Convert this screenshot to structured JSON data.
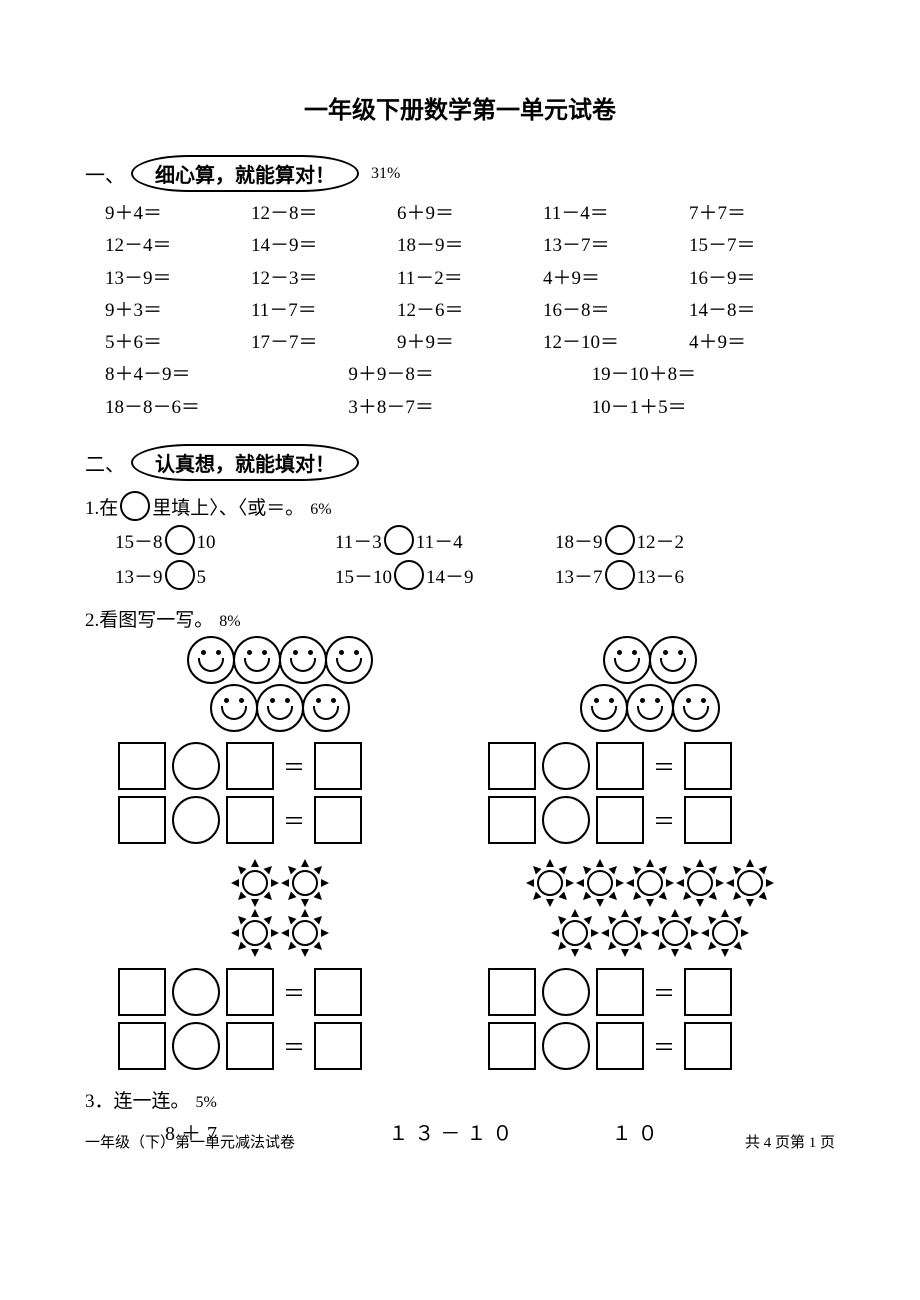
{
  "title": "一年级下册数学第一单元试卷",
  "section1": {
    "num": "一、",
    "bubble": "细心算，就能算对！",
    "pct": "31%",
    "rows": [
      [
        "9＋4＝",
        "12－8＝",
        "6＋9＝",
        "11－4＝",
        "7＋7＝"
      ],
      [
        "12－4＝",
        "14－9＝",
        "18－9＝",
        "13－7＝",
        "15－7＝"
      ],
      [
        "13－9＝",
        "12－3＝",
        "11－2＝",
        "4＋9＝",
        "16－9＝"
      ],
      [
        "9＋3＝",
        "11－7＝",
        "12－6＝",
        "16－8＝",
        "14－8＝"
      ],
      [
        "5＋6＝",
        "17－7＝",
        "9＋9＝",
        "12－10＝",
        "4＋9＝"
      ]
    ],
    "wide_rows": [
      [
        "8＋4－9＝",
        "9＋9－8＝",
        "19－10＋8＝"
      ],
      [
        "18－8－6＝",
        "3＋8－7＝",
        "10－1＋5＝"
      ]
    ]
  },
  "section2": {
    "num": "二、",
    "bubble": "认真想，就能填对！",
    "q1": {
      "label_a": "1.在",
      "label_b": "里填上〉、〈或＝。",
      "pct": "6%",
      "rows": [
        [
          {
            "l": "15－8",
            "r": "10"
          },
          {
            "l": "11－3",
            "r": "11－4"
          },
          {
            "l": "18－9",
            "r": "12－2"
          }
        ],
        [
          {
            "l": "13－9",
            "r": "5"
          },
          {
            "l": "15－10",
            "r": "14－9"
          },
          {
            "l": "13－7",
            "r": "13－6"
          }
        ]
      ]
    },
    "q2": {
      "label": "2.看图写一写。",
      "pct": "8%",
      "eq": "＝"
    },
    "q3": {
      "label": "3．连一连。",
      "pct": "5%",
      "items": [
        "8＋7",
        "１３－１０",
        "１０"
      ]
    }
  },
  "footer": {
    "left": "一年级（下）第一单元减法试卷",
    "right": "共 4 页第 1 页"
  }
}
